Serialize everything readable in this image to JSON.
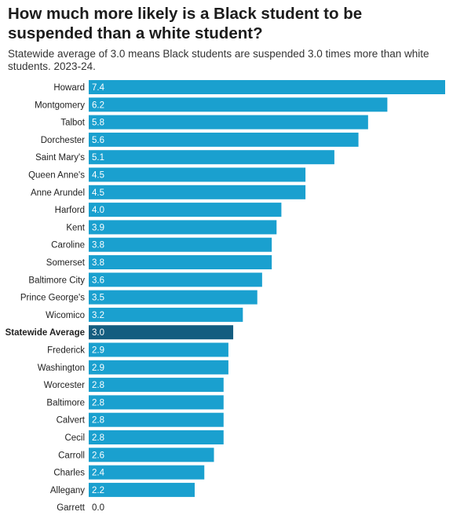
{
  "title": "How much more likely is a Black student to be suspended than a white student?",
  "subtitle": "Statewide average of 3.0 means Black students are suspended 3.0 times more than white students. 2023-24.",
  "colors": {
    "bar": "#1aa0cf",
    "highlight": "#145d80",
    "value_inside": "#ffffff",
    "value_outside": "#222222"
  },
  "chart_data": {
    "type": "bar",
    "orientation": "horizontal",
    "categories": [
      "Howard",
      "Montgomery",
      "Talbot",
      "Dorchester",
      "Saint Mary's",
      "Queen Anne's",
      "Anne Arundel",
      "Harford",
      "Kent",
      "Caroline",
      "Somerset",
      "Baltimore City",
      "Prince George's",
      "Wicomico",
      "Statewide Average",
      "Frederick",
      "Washington",
      "Worcester",
      "Baltimore",
      "Calvert",
      "Cecil",
      "Carroll",
      "Charles",
      "Allegany",
      "Garrett"
    ],
    "values": [
      7.4,
      6.2,
      5.8,
      5.6,
      5.1,
      4.5,
      4.5,
      4.0,
      3.9,
      3.8,
      3.8,
      3.6,
      3.5,
      3.2,
      3.0,
      2.9,
      2.9,
      2.8,
      2.8,
      2.8,
      2.8,
      2.6,
      2.4,
      2.2,
      0.0
    ],
    "value_labels": [
      "7.4",
      "6.2",
      "5.8",
      "5.6",
      "5.1",
      "4.5",
      "4.5",
      "4.0",
      "3.9",
      "3.8",
      "3.8",
      "3.6",
      "3.5",
      "3.2",
      "3.0",
      "2.9",
      "2.9",
      "2.8",
      "2.8",
      "2.8",
      "2.8",
      "2.6",
      "2.4",
      "2.2",
      "0.0"
    ],
    "highlight": "Statewide Average",
    "xlim": [
      0,
      7.4
    ],
    "grid": false,
    "legend": "none",
    "data_labels": "inside-bar-left"
  }
}
